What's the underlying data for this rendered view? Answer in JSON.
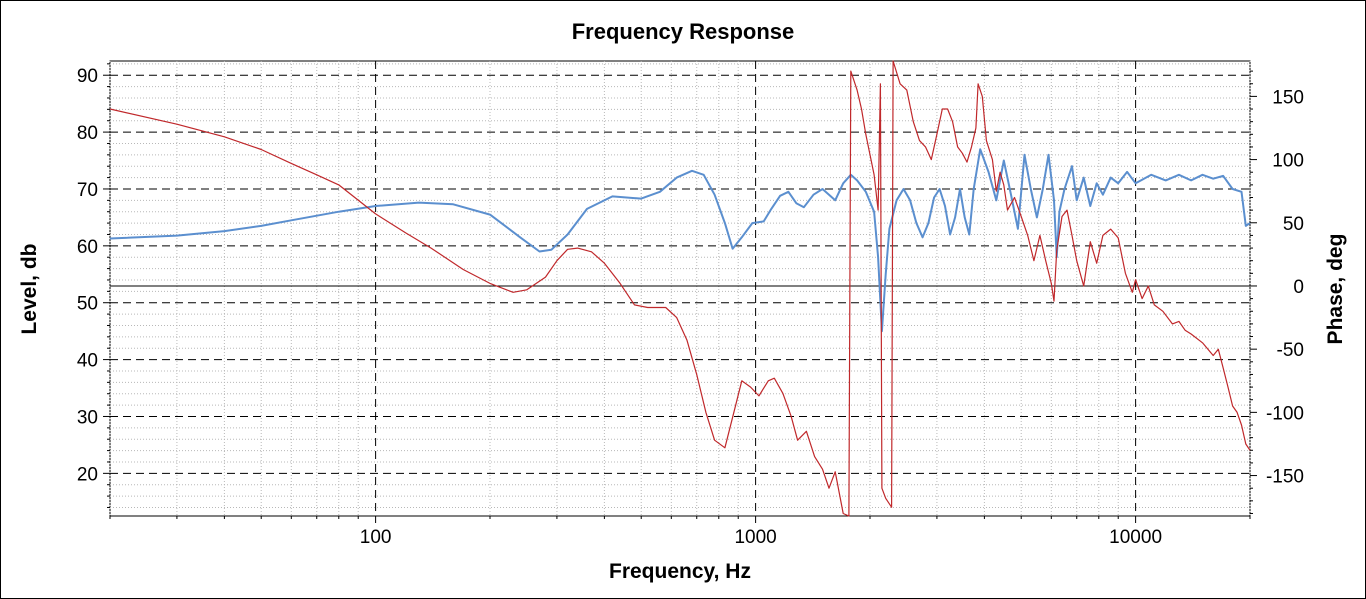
{
  "chart_data": {
    "type": "line",
    "title": "Frequency Response",
    "xlabel": "Frequency, Hz",
    "ylabel": "Level, db",
    "y2label": "Phase, deg",
    "xscale": "log",
    "xlim": [
      20,
      20000
    ],
    "ylim": [
      12.5,
      92.5
    ],
    "y2lim": [
      -182,
      178
    ],
    "grid": true,
    "x_ticks": [
      "100",
      "1000",
      "10000"
    ],
    "y_ticks": [
      "20",
      "30",
      "40",
      "50",
      "60",
      "70",
      "80",
      "90"
    ],
    "y2_ticks": [
      "-150",
      "-100",
      "-50",
      "0",
      "50",
      "100",
      "150"
    ],
    "series": [
      {
        "key": "level",
        "axis": "left",
        "color": "#5b8fcf",
        "points": [
          [
            20,
            61.3
          ],
          [
            30,
            61.8
          ],
          [
            40,
            62.6
          ],
          [
            50,
            63.5
          ],
          [
            60,
            64.5
          ],
          [
            80,
            66.0
          ],
          [
            100,
            67.0
          ],
          [
            130,
            67.6
          ],
          [
            160,
            67.3
          ],
          [
            200,
            65.5
          ],
          [
            240,
            61.5
          ],
          [
            270,
            59.0
          ],
          [
            290,
            59.3
          ],
          [
            320,
            62.0
          ],
          [
            360,
            66.5
          ],
          [
            420,
            68.7
          ],
          [
            500,
            68.3
          ],
          [
            560,
            69.5
          ],
          [
            620,
            72.0
          ],
          [
            680,
            73.2
          ],
          [
            730,
            72.5
          ],
          [
            780,
            69.0
          ],
          [
            830,
            64.0
          ],
          [
            870,
            59.5
          ],
          [
            920,
            61.5
          ],
          [
            980,
            64.0
          ],
          [
            1050,
            64.3
          ],
          [
            1100,
            66.5
          ],
          [
            1160,
            68.8
          ],
          [
            1220,
            69.5
          ],
          [
            1280,
            67.5
          ],
          [
            1340,
            66.8
          ],
          [
            1420,
            69.0
          ],
          [
            1500,
            70.0
          ],
          [
            1560,
            69.0
          ],
          [
            1620,
            68.0
          ],
          [
            1700,
            71.0
          ],
          [
            1780,
            72.5
          ],
          [
            1850,
            71.5
          ],
          [
            1950,
            69.5
          ],
          [
            2050,
            66.0
          ],
          [
            2100,
            58.0
          ],
          [
            2150,
            45.0
          ],
          [
            2200,
            55.0
          ],
          [
            2250,
            63.0
          ],
          [
            2350,
            68.0
          ],
          [
            2450,
            70.0
          ],
          [
            2550,
            68.0
          ],
          [
            2650,
            64.0
          ],
          [
            2750,
            61.5
          ],
          [
            2850,
            64.0
          ],
          [
            2950,
            68.5
          ],
          [
            3050,
            70.0
          ],
          [
            3150,
            67.0
          ],
          [
            3250,
            62.0
          ],
          [
            3350,
            65.0
          ],
          [
            3450,
            70.0
          ],
          [
            3550,
            65.0
          ],
          [
            3650,
            62.0
          ],
          [
            3750,
            70.0
          ],
          [
            3900,
            77.0
          ],
          [
            4100,
            73.0
          ],
          [
            4300,
            68.0
          ],
          [
            4500,
            75.0
          ],
          [
            4700,
            69.0
          ],
          [
            4900,
            63.0
          ],
          [
            5100,
            76.0
          ],
          [
            5300,
            70.0
          ],
          [
            5500,
            65.0
          ],
          [
            5700,
            70.0
          ],
          [
            5900,
            76.0
          ],
          [
            6100,
            68.0
          ],
          [
            6200,
            58.0
          ],
          [
            6300,
            66.0
          ],
          [
            6500,
            70.0
          ],
          [
            6800,
            74.0
          ],
          [
            7000,
            68.0
          ],
          [
            7300,
            72.0
          ],
          [
            7600,
            67.0
          ],
          [
            7900,
            71.0
          ],
          [
            8200,
            69.0
          ],
          [
            8600,
            72.0
          ],
          [
            9000,
            71.0
          ],
          [
            9500,
            73.0
          ],
          [
            10000,
            71.0
          ],
          [
            11000,
            72.5
          ],
          [
            12000,
            71.5
          ],
          [
            13000,
            72.5
          ],
          [
            14000,
            71.5
          ],
          [
            15000,
            72.5
          ],
          [
            16000,
            71.8
          ],
          [
            17000,
            72.3
          ],
          [
            18000,
            70.0
          ],
          [
            19000,
            69.5
          ],
          [
            19500,
            63.5
          ],
          [
            20000,
            64.0
          ]
        ]
      },
      {
        "key": "phase",
        "axis": "right",
        "color": "#c0282b",
        "points": [
          [
            20,
            140
          ],
          [
            30,
            128
          ],
          [
            40,
            118
          ],
          [
            50,
            108
          ],
          [
            60,
            97
          ],
          [
            70,
            88
          ],
          [
            80,
            80
          ],
          [
            100,
            57
          ],
          [
            120,
            42
          ],
          [
            140,
            30
          ],
          [
            170,
            13
          ],
          [
            200,
            2
          ],
          [
            230,
            -5
          ],
          [
            250,
            -3
          ],
          [
            280,
            7
          ],
          [
            300,
            20
          ],
          [
            320,
            29
          ],
          [
            340,
            30
          ],
          [
            370,
            27
          ],
          [
            400,
            18
          ],
          [
            440,
            2
          ],
          [
            480,
            -15
          ],
          [
            520,
            -17
          ],
          [
            580,
            -17
          ],
          [
            620,
            -25
          ],
          [
            660,
            -43
          ],
          [
            700,
            -70
          ],
          [
            740,
            -100
          ],
          [
            780,
            -122
          ],
          [
            830,
            -128
          ],
          [
            880,
            -98
          ],
          [
            920,
            -75
          ],
          [
            970,
            -80
          ],
          [
            1020,
            -87
          ],
          [
            1080,
            -75
          ],
          [
            1120,
            -73
          ],
          [
            1180,
            -85
          ],
          [
            1240,
            -103
          ],
          [
            1290,
            -122
          ],
          [
            1360,
            -115
          ],
          [
            1430,
            -135
          ],
          [
            1500,
            -145
          ],
          [
            1560,
            -160
          ],
          [
            1620,
            -147
          ],
          [
            1700,
            -180
          ],
          [
            1760,
            -182
          ],
          [
            1780,
            170
          ],
          [
            1850,
            155
          ],
          [
            1900,
            140
          ],
          [
            1950,
            120
          ],
          [
            2050,
            88
          ],
          [
            2100,
            60
          ],
          [
            2130,
            160
          ],
          [
            2150,
            -160
          ],
          [
            2200,
            -168
          ],
          [
            2280,
            -175
          ],
          [
            2300,
            178
          ],
          [
            2400,
            160
          ],
          [
            2500,
            155
          ],
          [
            2600,
            130
          ],
          [
            2700,
            115
          ],
          [
            2800,
            110
          ],
          [
            2900,
            100
          ],
          [
            3000,
            120
          ],
          [
            3100,
            140
          ],
          [
            3200,
            140
          ],
          [
            3300,
            130
          ],
          [
            3400,
            110
          ],
          [
            3500,
            105
          ],
          [
            3600,
            98
          ],
          [
            3700,
            110
          ],
          [
            3800,
            125
          ],
          [
            3850,
            160
          ],
          [
            3950,
            150
          ],
          [
            4050,
            115
          ],
          [
            4200,
            100
          ],
          [
            4300,
            75
          ],
          [
            4400,
            90
          ],
          [
            4500,
            80
          ],
          [
            4600,
            60
          ],
          [
            4800,
            70
          ],
          [
            5000,
            55
          ],
          [
            5200,
            40
          ],
          [
            5400,
            20
          ],
          [
            5600,
            40
          ],
          [
            5800,
            20
          ],
          [
            6000,
            2
          ],
          [
            6100,
            -12
          ],
          [
            6200,
            28
          ],
          [
            6400,
            55
          ],
          [
            6600,
            60
          ],
          [
            6800,
            40
          ],
          [
            7000,
            20
          ],
          [
            7300,
            0
          ],
          [
            7600,
            35
          ],
          [
            7900,
            18
          ],
          [
            8200,
            40
          ],
          [
            8600,
            45
          ],
          [
            9000,
            38
          ],
          [
            9400,
            10
          ],
          [
            9800,
            -5
          ],
          [
            10000,
            5
          ],
          [
            10400,
            -10
          ],
          [
            10800,
            0
          ],
          [
            11200,
            -15
          ],
          [
            11800,
            -20
          ],
          [
            12500,
            -30
          ],
          [
            13000,
            -28
          ],
          [
            13500,
            -35
          ],
          [
            14000,
            -38
          ],
          [
            15000,
            -45
          ],
          [
            16000,
            -55
          ],
          [
            16500,
            -50
          ],
          [
            17000,
            -65
          ],
          [
            17500,
            -80
          ],
          [
            18000,
            -95
          ],
          [
            18500,
            -100
          ],
          [
            19000,
            -110
          ],
          [
            19500,
            -125
          ],
          [
            20000,
            -130
          ]
        ]
      }
    ]
  }
}
